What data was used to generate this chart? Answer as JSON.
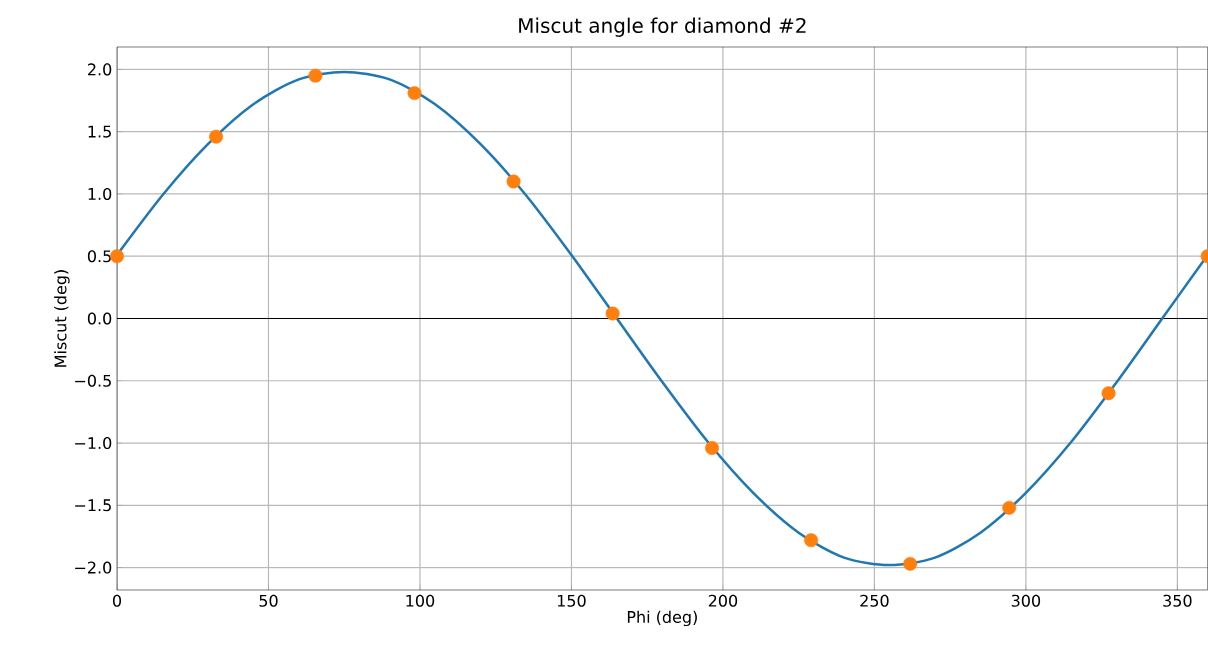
{
  "chart_data": {
    "type": "line",
    "title": "Miscut angle for diamond #2",
    "xlabel": "Phi (deg)",
    "ylabel": "Miscut (deg)",
    "xlim": [
      0,
      360
    ],
    "ylim": [
      -2.18,
      2.18
    ],
    "xticks": [
      0,
      50,
      100,
      150,
      200,
      250,
      300,
      350
    ],
    "yticks": [
      {
        "value": -2,
        "label": "−2.0"
      },
      {
        "value": -1.5,
        "label": "−1.5"
      },
      {
        "value": -1,
        "label": "−1.0"
      },
      {
        "value": -0.5,
        "label": "−0.5"
      },
      {
        "value": 0,
        "label": "0.0"
      },
      {
        "value": 0.5,
        "label": "0.5"
      },
      {
        "value": 1,
        "label": "1.0"
      },
      {
        "value": 1.5,
        "label": "1.5"
      },
      {
        "value": 2,
        "label": "2.0"
      }
    ],
    "grid": true,
    "ref_lines": [
      {
        "axis": "y",
        "value": 0,
        "color": "#000000"
      }
    ],
    "series": [
      {
        "color": "#1f77b4",
        "marker": "none",
        "x": [
          0,
          15,
          30,
          45,
          60,
          75,
          90,
          105,
          120,
          135,
          150,
          165,
          180,
          195,
          210,
          225,
          240,
          255,
          270,
          285,
          300,
          315,
          330,
          345,
          360
        ],
        "values": [
          0.51,
          0.99,
          1.4,
          1.72,
          1.92,
          1.98,
          1.92,
          1.72,
          1.4,
          0.99,
          0.51,
          0.0,
          -0.51,
          -0.99,
          -1.4,
          -1.72,
          -1.92,
          -1.98,
          -1.92,
          -1.72,
          -1.4,
          -0.99,
          -0.51,
          0.0,
          0.51
        ]
      },
      {
        "type": "scatter",
        "color": "#ff7f0e",
        "marker": "circle",
        "x": [
          0,
          32.7,
          65.5,
          98.2,
          130.9,
          163.6,
          196.4,
          229.1,
          261.8,
          294.5,
          327.3,
          360
        ],
        "values": [
          0.5,
          1.46,
          1.95,
          1.81,
          1.1,
          0.04,
          -1.04,
          -1.78,
          -1.97,
          -1.52,
          -0.6,
          0.5
        ]
      }
    ]
  }
}
